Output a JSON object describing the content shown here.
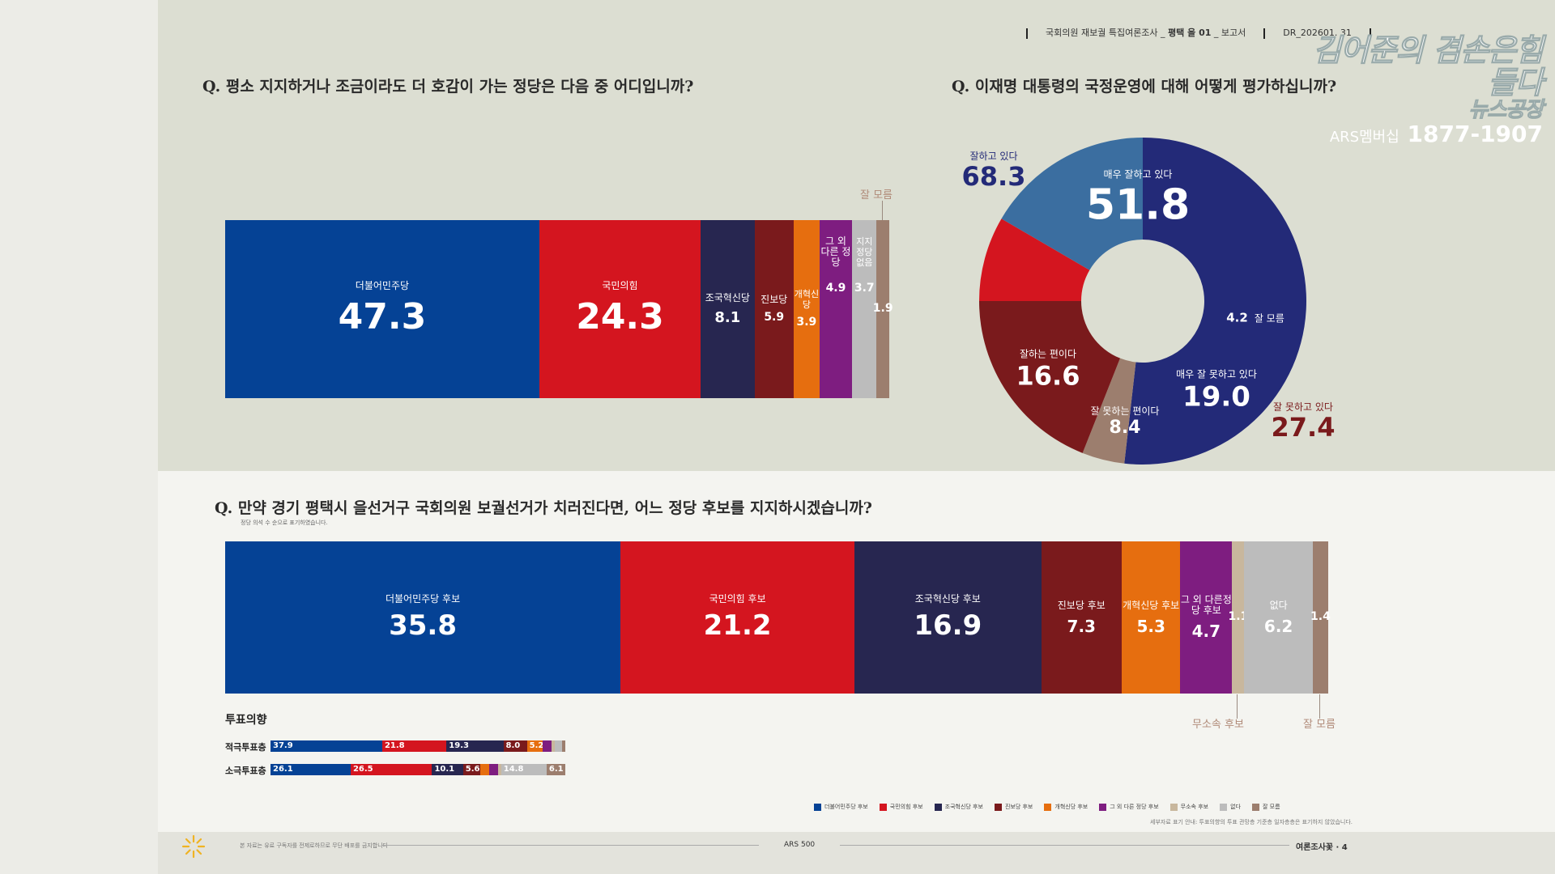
{
  "header": {
    "report": "국회의원 재보궐 특집여론조사 _",
    "region": "평택 을 01",
    "suffix": "_ 보고서",
    "code": "DR_202601. 31"
  },
  "logo": {
    "line1": "김어준의 겸손은힘들다",
    "line1b": "뉴스공장",
    "members": "ARS멤버십",
    "phone": "1877-1907"
  },
  "q1": {
    "question": "Q. 평소 지지하거나 조금이라도 더 호감이 가는 정당은 다음 중 어디입니까?",
    "dont_know_label": "잘 모름"
  },
  "q2": {
    "question": "Q. 이재명 대통령의 국정운영에 대해 어떻게 평가하십니까?",
    "positive_label": "잘하고 있다",
    "positive_value": "68.3",
    "negative_label": "잘 못하고 있다",
    "negative_value": "27.4"
  },
  "q3": {
    "question": "Q. 만약 경기 평택시 을선거구 국회의원 보궐선거가 치러진다면, 어느 정당 후보를 지지하시겠습니까?",
    "note": "정당 의석 수 순으로 표기하였습니다.",
    "independent_label": "무소속 후보",
    "dont_know_label": "잘 모름"
  },
  "voting": {
    "title": "투표의향",
    "rows": [
      {
        "label": "적극투표층",
        "values": [
          37.9,
          21.8,
          19.3,
          8.0,
          5.2,
          3.0,
          1.2,
          2.4,
          1.2
        ],
        "labels": [
          "37.9",
          "21.8",
          "19.3",
          "8.0",
          "5.2",
          "",
          "",
          "",
          ""
        ]
      },
      {
        "label": "소극투표층",
        "values": [
          26.1,
          26.5,
          10.1,
          5.6,
          2.8,
          3.0,
          1.0,
          14.8,
          6.1
        ],
        "labels": [
          "26.1",
          "26.5",
          "10.1",
          "5.6",
          "",
          "",
          "",
          "14.8",
          "6.1"
        ]
      }
    ]
  },
  "legend": {
    "items": [
      "더불어민주당 후보",
      "국민의힘 후보",
      "조국혁신당 후보",
      "진보당 후보",
      "개혁신당 후보",
      "그 외 다른 정당 후보",
      "무소속 후보",
      "없다",
      "잘 모름"
    ],
    "colors": [
      "#054295",
      "#d4151f",
      "#272650",
      "#7a1a1c",
      "#e66e0f",
      "#7e1d80",
      "#c8b79d",
      "#bcbcbc",
      "#9c7e6e"
    ]
  },
  "sub_note": "세부자료 표기 안내: 투표의향의 투표 관망층 기준층 일자층층은 표기하지 않았습니다.",
  "footer": {
    "note": "본 자료는 유료 구독자를 전제로하므로 무단 배포를 금지합니다",
    "method": "ARS 500",
    "brand": "여론조사꽃",
    "page": "4"
  },
  "chart_data": [
    {
      "type": "bar",
      "orientation": "horizontal-stacked-100",
      "title": "Q. 평소 지지하거나 조금이라도 더 호감이 가는 정당은 다음 중 어디입니까?",
      "categories": [
        "더불어민주당",
        "국민의힘",
        "조국혁신당",
        "진보당",
        "개혁신당",
        "그 외 다른 정당",
        "지지 정당 없음",
        "잘 모름"
      ],
      "values": [
        47.3,
        24.3,
        8.1,
        5.9,
        3.9,
        4.9,
        3.7,
        1.9
      ],
      "labels": [
        "47.3",
        "24.3",
        "8.1",
        "5.9",
        "3.9",
        "4.9",
        "3.7",
        "1.9"
      ],
      "colors": [
        "#054295",
        "#d4151f",
        "#272650",
        "#7a1a1c",
        "#e66e0f",
        "#7e1d80",
        "#bcbcbc",
        "#9c7e6e"
      ]
    },
    {
      "type": "pie",
      "style": "donut",
      "title": "Q. 이재명 대통령의 국정운영에 대해 어떻게 평가하십니까?",
      "categories": [
        "매우 잘하고 있다",
        "잘 모름",
        "매우 잘 못하고 있다",
        "잘 못하는 편이다",
        "잘하는 편이다"
      ],
      "values": [
        51.8,
        4.2,
        19.0,
        8.4,
        16.6
      ],
      "labels": [
        "51.8",
        "4.2",
        "19.0",
        "8.4",
        "16.6"
      ],
      "colors": [
        "#232a78",
        "#9c7e6e",
        "#7a1a1c",
        "#d4151f",
        "#3b6ea0"
      ]
    },
    {
      "type": "bar",
      "orientation": "horizontal-stacked-100",
      "title": "Q. 만약 경기 평택시 을선거구 국회의원 보궐선거가 치러진다면, 어느 정당 후보를 지지하시겠습니까?",
      "categories": [
        "더불어민주당 후보",
        "국민의힘 후보",
        "조국혁신당 후보",
        "진보당 후보",
        "개혁신당 후보",
        "그 외 다른정당 후보",
        "무소속 후보",
        "없다",
        "잘 모름"
      ],
      "values": [
        35.8,
        21.2,
        16.9,
        7.3,
        5.3,
        4.7,
        1.1,
        6.2,
        1.4
      ],
      "labels": [
        "35.8",
        "21.2",
        "16.9",
        "7.3",
        "5.3",
        "4.7",
        "1.1",
        "6.2",
        "1.4"
      ],
      "colors": [
        "#054295",
        "#d4151f",
        "#272650",
        "#7a1a1c",
        "#e66e0f",
        "#7e1d80",
        "#c8b79d",
        "#bcbcbc",
        "#9c7e6e"
      ]
    }
  ]
}
